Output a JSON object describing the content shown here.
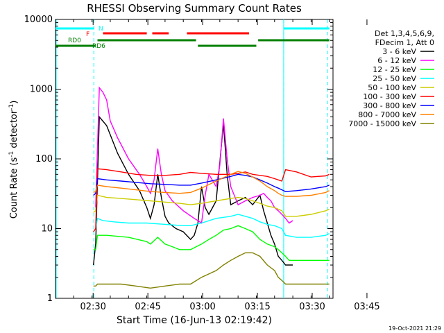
{
  "chart_data": {
    "type": "line",
    "title": "RHESSI Observing Summary Count Rates",
    "xlabel": "Start Time (16-Jun-13 02:19:42)",
    "ylabel_parts": [
      "Count Rate (s",
      "-1",
      " detector",
      "-1",
      ")"
    ],
    "yscale": "log",
    "ylim": [
      1,
      10000
    ],
    "xlim_minutes": [
      0,
      76
    ],
    "x_tick_labels": [
      "02:30",
      "02:45",
      "03:00",
      "03:15",
      "03:30",
      "03:45"
    ],
    "x_tick_minutes": [
      10.3,
      25.3,
      40.3,
      55.3,
      70.3,
      85.3
    ],
    "y_tick_labels": [
      "1",
      "10",
      "100",
      "1000",
      "10000"
    ],
    "y_tick_values": [
      1,
      10,
      100,
      1000,
      10000
    ],
    "legend_header": [
      "Det 1,3,4,5,6,9,",
      "FDecim 1, Att 0"
    ],
    "legend_position": "right",
    "timestamp": "19-Oct-2021 21:29",
    "flags": {
      "night": {
        "label": "N",
        "color": "#00ffff",
        "intervals": [
          [
            0,
            10.6
          ],
          [
            62.5,
            75
          ]
        ]
      },
      "flare": {
        "label": "F",
        "color": "#ff0000",
        "intervals": [
          [
            13,
            25
          ],
          [
            26.5,
            31
          ],
          [
            36,
            53
          ]
        ]
      },
      "rd0": {
        "label": "RD0",
        "color": "#008000"
      },
      "rd6": {
        "label": "RD6",
        "color": "#008000",
        "intervals": [
          [
            0,
            11
          ],
          [
            11.5,
            38.5
          ],
          [
            39,
            55
          ],
          [
            55.5,
            75
          ]
        ]
      },
      "saa_lines_minutes": [
        10.5,
        62.5,
        74.5
      ]
    },
    "series": [
      {
        "name": "3 - 6 keV",
        "color": "#000000",
        "x": [
          0,
          7,
          10.4,
          11,
          12,
          14,
          17,
          20,
          23,
          25,
          26,
          27,
          28,
          29,
          30,
          31,
          33,
          35,
          37,
          38,
          39,
          40,
          41,
          42,
          44,
          46,
          47,
          48,
          50,
          52,
          54,
          56,
          57,
          58,
          59,
          60,
          61,
          62,
          63,
          64,
          65,
          66,
          67,
          68,
          69,
          70,
          72,
          74,
          75,
          76
        ],
        "y": [
          null,
          null,
          3,
          6,
          400,
          300,
          120,
          60,
          35,
          20,
          14,
          22,
          60,
          28,
          15,
          12,
          10,
          9,
          7,
          8,
          12,
          40,
          20,
          16,
          25,
          320,
          60,
          22,
          25,
          28,
          22,
          30,
          18,
          12,
          8,
          6,
          4,
          3.5,
          3,
          3,
          3,
          null,
          null,
          null,
          null,
          null,
          null,
          null,
          null,
          null
        ]
      },
      {
        "name": "6 - 12 keV",
        "color": "#ff00ff",
        "x": [
          11,
          12,
          13,
          14,
          15,
          17,
          20,
          23,
          25,
          26,
          27,
          28,
          29,
          30,
          32,
          35,
          38,
          39,
          40,
          41,
          42,
          44,
          45,
          46,
          47,
          48,
          50,
          52,
          54,
          56,
          57,
          58,
          59,
          60,
          61,
          62,
          63,
          64,
          65
        ],
        "y": [
          20,
          1050,
          900,
          700,
          350,
          200,
          100,
          60,
          40,
          32,
          50,
          140,
          60,
          35,
          25,
          18,
          14,
          13,
          12,
          30,
          60,
          40,
          80,
          380,
          100,
          40,
          22,
          25,
          28,
          30,
          32,
          28,
          25,
          20,
          18,
          16,
          14,
          12,
          13
        ]
      },
      {
        "name": "12 - 25 keV",
        "color": "#00ff00",
        "x": [
          0,
          7,
          10.4,
          11,
          11.5,
          14,
          20,
          25,
          26,
          28,
          30,
          32,
          34,
          37,
          40,
          42,
          44,
          46,
          48,
          50,
          52,
          54,
          56,
          58,
          60,
          61,
          62,
          63,
          64,
          66,
          68,
          70,
          72,
          74,
          75,
          76
        ],
        "y": [
          null,
          null,
          5,
          5,
          8,
          8,
          7.5,
          6.5,
          6,
          7.5,
          6,
          5.5,
          5,
          5,
          6,
          7,
          8,
          9.5,
          10,
          11,
          10,
          9,
          7,
          6,
          5.5,
          5,
          4.5,
          4,
          3.5,
          3.5,
          3.5,
          3.5,
          3.5,
          3.5,
          3.5,
          null
        ]
      },
      {
        "name": "25 - 50 keV",
        "color": "#00ffff",
        "x": [
          0,
          7,
          10.4,
          11,
          11.5,
          13,
          16,
          20,
          25,
          30,
          35,
          37,
          40,
          44,
          48,
          50,
          52,
          54,
          56,
          58,
          60,
          61,
          62,
          63,
          66,
          70,
          74,
          75,
          76
        ],
        "y": [
          null,
          null,
          9,
          10,
          14,
          13,
          12.5,
          12,
          12,
          11.5,
          11,
          11,
          12,
          14,
          15,
          16,
          15,
          14,
          12.5,
          11.5,
          11,
          10.5,
          10,
          8,
          7.5,
          7.5,
          8,
          8.5,
          null
        ]
      },
      {
        "name": "50 - 100 keV",
        "color": "#cccc00",
        "x": [
          0,
          7,
          10.4,
          11,
          11.5,
          14,
          18,
          22,
          26,
          30,
          34,
          37,
          40,
          44,
          48,
          50,
          52,
          54,
          56,
          58,
          60,
          61,
          62,
          63,
          66,
          70,
          74,
          75,
          76
        ],
        "y": [
          null,
          null,
          17,
          18,
          30,
          28,
          27,
          26,
          25,
          24,
          23,
          22,
          23,
          25,
          27,
          28,
          27,
          25,
          23,
          21,
          20,
          19,
          18,
          15,
          15,
          16,
          18,
          19,
          null
        ]
      },
      {
        "name": "100 - 300 keV",
        "color": "#ff0000",
        "x": [
          0,
          7,
          10.4,
          11,
          11.5,
          14,
          18,
          22,
          26,
          30,
          34,
          37,
          40,
          44,
          48,
          50,
          52,
          54,
          56,
          58,
          60,
          61,
          62,
          63,
          66,
          70,
          74,
          75,
          76
        ],
        "y": [
          null,
          null,
          9,
          10,
          72,
          70,
          65,
          60,
          58,
          58,
          60,
          64,
          62,
          60,
          60,
          62,
          65,
          60,
          58,
          56,
          52,
          50,
          48,
          70,
          65,
          55,
          57,
          60,
          null
        ]
      },
      {
        "name": "300 - 800 keV",
        "color": "#0000ff",
        "x": [
          0,
          7,
          10.4,
          11,
          11.5,
          14,
          18,
          22,
          26,
          30,
          34,
          37,
          40,
          44,
          48,
          50,
          52,
          54,
          56,
          58,
          60,
          61,
          62,
          63,
          66,
          70,
          74,
          75,
          76
        ],
        "y": [
          null,
          null,
          30,
          32,
          52,
          50,
          48,
          46,
          44,
          43,
          42,
          42,
          45,
          50,
          56,
          60,
          58,
          55,
          50,
          45,
          40,
          38,
          36,
          34,
          35,
          37,
          40,
          42,
          null
        ]
      },
      {
        "name": "800 - 7000 keV",
        "color": "#ff8000",
        "x": [
          0,
          7,
          10.4,
          11,
          11.5,
          14,
          18,
          22,
          26,
          30,
          34,
          37,
          40,
          44,
          48,
          50,
          52,
          54,
          56,
          58,
          60,
          61,
          62,
          63,
          66,
          70,
          74,
          75,
          76
        ],
        "y": [
          null,
          null,
          33,
          34,
          42,
          40,
          38,
          36,
          34,
          33,
          32,
          33,
          38,
          48,
          60,
          66,
          62,
          55,
          48,
          40,
          35,
          32,
          30,
          29,
          29,
          30,
          33,
          35,
          null
        ]
      },
      {
        "name": "7000 - 15000 keV",
        "color": "#808000",
        "x": [
          0,
          7,
          10.4,
          11,
          11.5,
          14,
          18,
          22,
          26,
          30,
          34,
          37,
          40,
          44,
          46,
          48,
          50,
          52,
          54,
          56,
          58,
          60,
          61,
          62,
          63,
          66,
          70,
          74,
          75,
          76
        ],
        "y": [
          null,
          null,
          1.5,
          1.5,
          1.6,
          1.6,
          1.6,
          1.5,
          1.4,
          1.5,
          1.6,
          1.6,
          2,
          2.5,
          3,
          3.5,
          4,
          4.5,
          4.5,
          4,
          3,
          2.5,
          2,
          1.8,
          1.6,
          1.6,
          1.6,
          1.6,
          1.6,
          null
        ]
      }
    ]
  }
}
